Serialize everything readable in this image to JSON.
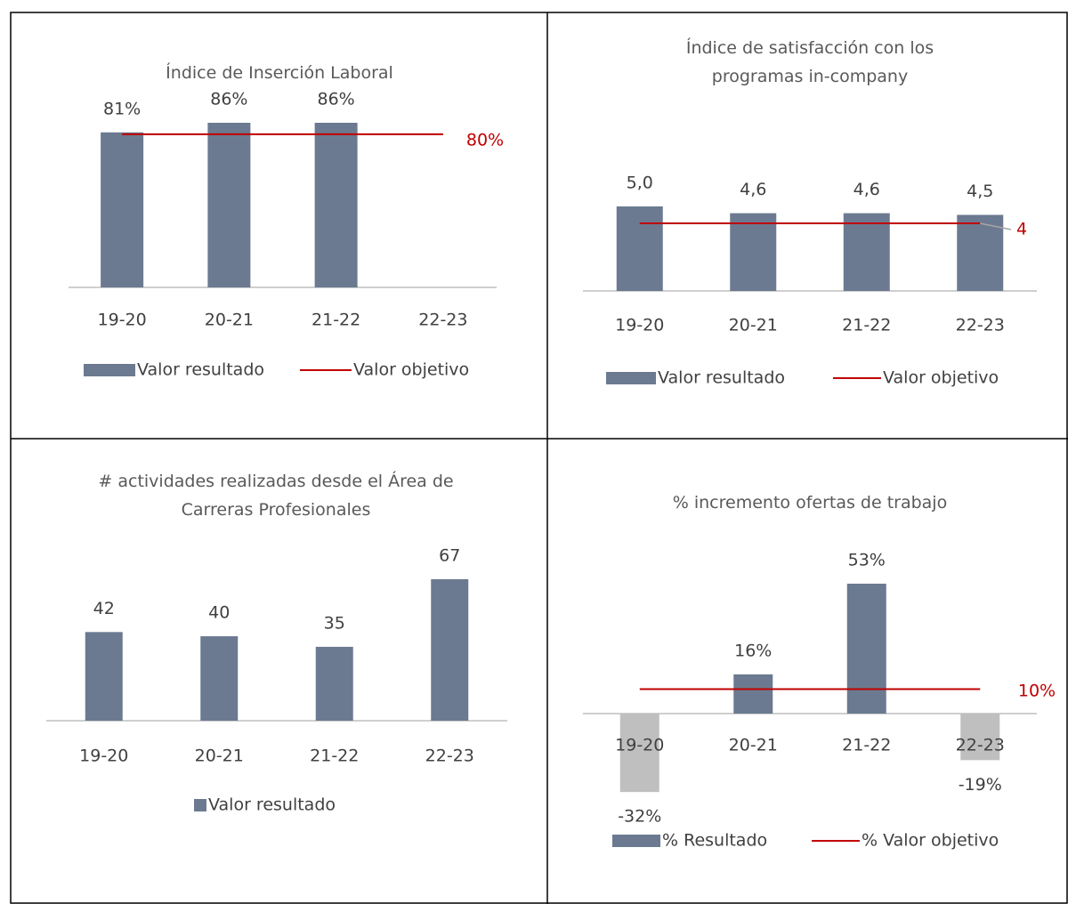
{
  "chart_data": [
    {
      "type": "bar",
      "title": "Índice de Inserción Laboral",
      "categories": [
        "19-20",
        "20-21",
        "21-22",
        "22-23"
      ],
      "series": [
        {
          "name": "Valor resultado",
          "color": "#6b7a90",
          "values": [
            81,
            86,
            86,
            null
          ],
          "value_labels": [
            "81%",
            "86%",
            "86%",
            null
          ]
        },
        {
          "name": "Valor objetivo",
          "color": "#c00000",
          "kind": "target",
          "value": 80,
          "value_label": "80%"
        }
      ]
    },
    {
      "type": "bar",
      "title": "Índice de satisfacción con los programas in-company",
      "categories": [
        "19-20",
        "20-21",
        "21-22",
        "22-23"
      ],
      "series": [
        {
          "name": "Valor resultado",
          "color": "#6b7a90",
          "values": [
            5.0,
            4.6,
            4.6,
            4.5
          ],
          "value_labels": [
            "5,0",
            "4,6",
            "4,6",
            "4,5"
          ]
        },
        {
          "name": "Valor objetivo",
          "color": "#c00000",
          "kind": "target",
          "value": 4
        }
      ]
    },
    {
      "type": "bar",
      "title": "# actividades realizadas desde el Área de Carreras Profesionales",
      "categories": [
        "19-20",
        "20-21",
        "21-22",
        "22-23"
      ],
      "series": [
        {
          "name": "Valor resultado",
          "color": "#6b7a90",
          "values": [
            42,
            40,
            35,
            67
          ]
        }
      ]
    },
    {
      "type": "bar",
      "title": "% incremento ofertas de trabajo",
      "categories": [
        "19-20",
        "20-21",
        "21-22",
        "22-23"
      ],
      "series": [
        {
          "name": "% Resultado",
          "color": "#6b7a90",
          "negative_color": "#bfbfbf",
          "values": [
            -32,
            16,
            53,
            -19
          ],
          "value_labels": [
            "-32%",
            "16%",
            "53%",
            "-19%"
          ]
        },
        {
          "name": "% Valor objetivo",
          "color": "#c00000",
          "kind": "target",
          "value": 10,
          "value_label": "10%"
        }
      ]
    }
  ]
}
